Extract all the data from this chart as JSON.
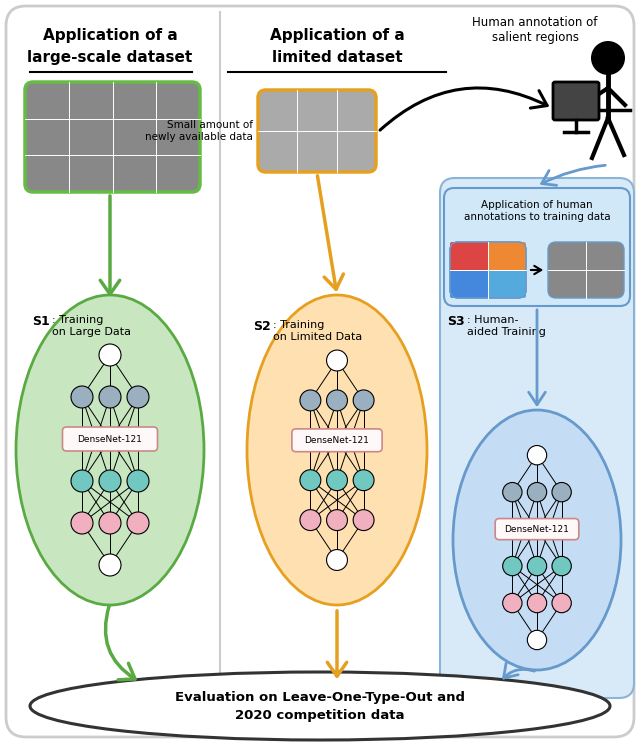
{
  "fig_width": 6.4,
  "fig_height": 7.43,
  "bg_color": "#ffffff",
  "node_white": "#ffffff",
  "node_gray": "#9ab0c0",
  "node_teal": "#70c8c0",
  "node_pink": "#f0b0c0",
  "densenet_label": "DenseNet-121",
  "left_title1": "Application of a",
  "left_title2": "large-scale dataset",
  "mid_title1": "Application of a",
  "mid_title2": "limited dataset",
  "right_title1": "Human annotation of",
  "right_title2": "salient regions",
  "s1_text": "S1",
  "s1_desc": ": Training\non Large Data",
  "s2_text": "S2",
  "s2_desc": ": Training\non Limited Data",
  "s3_text": "S3",
  "s3_desc": ": Human-\naided Training",
  "small_data_text": "Small amount of\nnewly available data",
  "annotation_text": "Application of human\nannotations to training data",
  "bottom_text1": "Evaluation on Leave-One-Type-Out and",
  "bottom_text2": "2020 competition data",
  "green_ellipse_fc": "#c8e6c0",
  "green_ellipse_ec": "#5aaa44",
  "orange_ellipse_fc": "#ffe0b0",
  "orange_ellipse_ec": "#e6a020",
  "blue_ellipse_fc": "#c5dcf5",
  "blue_ellipse_ec": "#6699cc",
  "blue_box_fc": "#d0e8f8",
  "blue_box_ec": "#6699cc",
  "right_panel_fc": "#d8eaf8",
  "right_panel_ec": "#8ab4d8"
}
